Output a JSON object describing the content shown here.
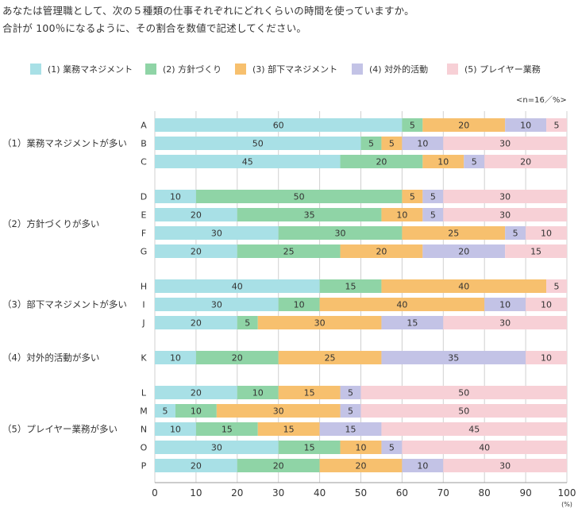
{
  "question": {
    "line1": "あなたは管理職として、次の５種類の仕事それぞれにどれくらいの時間を使っていますか。",
    "line2": "合計が 100％になるように、その割合を数値で記述してください。"
  },
  "unit_label": "<n=16／%>",
  "colors": [
    "#a8e0e6",
    "#8fd4a6",
    "#f7c06e",
    "#c3c3e6",
    "#f7d0d6"
  ],
  "chart_data": {
    "type": "bar",
    "orientation": "horizontal",
    "stacked": true,
    "legend_position": "top",
    "series_names": [
      "(1) 業務マネジメント",
      "(2) 方針づくり",
      "(3) 部下マネジメント",
      "(4) 対外的活動",
      "(5) プレイヤー業務"
    ],
    "xlim": [
      0,
      100
    ],
    "xticks": [
      "0",
      "10",
      "20",
      "30",
      "40",
      "50",
      "60",
      "70",
      "80",
      "90",
      "100"
    ],
    "xunit": "(%)",
    "groups": [
      {
        "label": "（1）業務マネジメントが多い",
        "rows": [
          {
            "id": "A",
            "values": [
              60,
              5,
              20,
              10,
              5
            ]
          },
          {
            "id": "B",
            "values": [
              50,
              5,
              5,
              10,
              30
            ]
          },
          {
            "id": "C",
            "values": [
              45,
              20,
              10,
              5,
              20
            ]
          }
        ]
      },
      {
        "label": "（2）方針づくりが多い",
        "rows": [
          {
            "id": "D",
            "values": [
              10,
              50,
              5,
              5,
              30
            ]
          },
          {
            "id": "E",
            "values": [
              20,
              35,
              10,
              5,
              30
            ]
          },
          {
            "id": "F",
            "values": [
              30,
              30,
              25,
              5,
              10
            ]
          },
          {
            "id": "G",
            "values": [
              20,
              25,
              20,
              20,
              15
            ]
          }
        ]
      },
      {
        "label": "（3）部下マネジメントが多い",
        "rows": [
          {
            "id": "H",
            "values": [
              40,
              15,
              40,
              0,
              5
            ]
          },
          {
            "id": "I",
            "values": [
              30,
              10,
              40,
              10,
              10
            ]
          },
          {
            "id": "J",
            "values": [
              20,
              5,
              30,
              15,
              30
            ]
          }
        ]
      },
      {
        "label": "（4）対外的活動が多い",
        "rows": [
          {
            "id": "K",
            "values": [
              10,
              20,
              25,
              35,
              10
            ]
          }
        ]
      },
      {
        "label": "（5）プレイヤー業務が多い",
        "rows": [
          {
            "id": "L",
            "values": [
              20,
              10,
              15,
              5,
              50
            ]
          },
          {
            "id": "M",
            "values": [
              5,
              10,
              30,
              5,
              50
            ]
          },
          {
            "id": "N",
            "values": [
              10,
              15,
              15,
              15,
              45
            ]
          },
          {
            "id": "O",
            "values": [
              30,
              15,
              10,
              5,
              40
            ]
          },
          {
            "id": "P",
            "values": [
              20,
              20,
              20,
              10,
              30
            ]
          }
        ]
      }
    ]
  }
}
